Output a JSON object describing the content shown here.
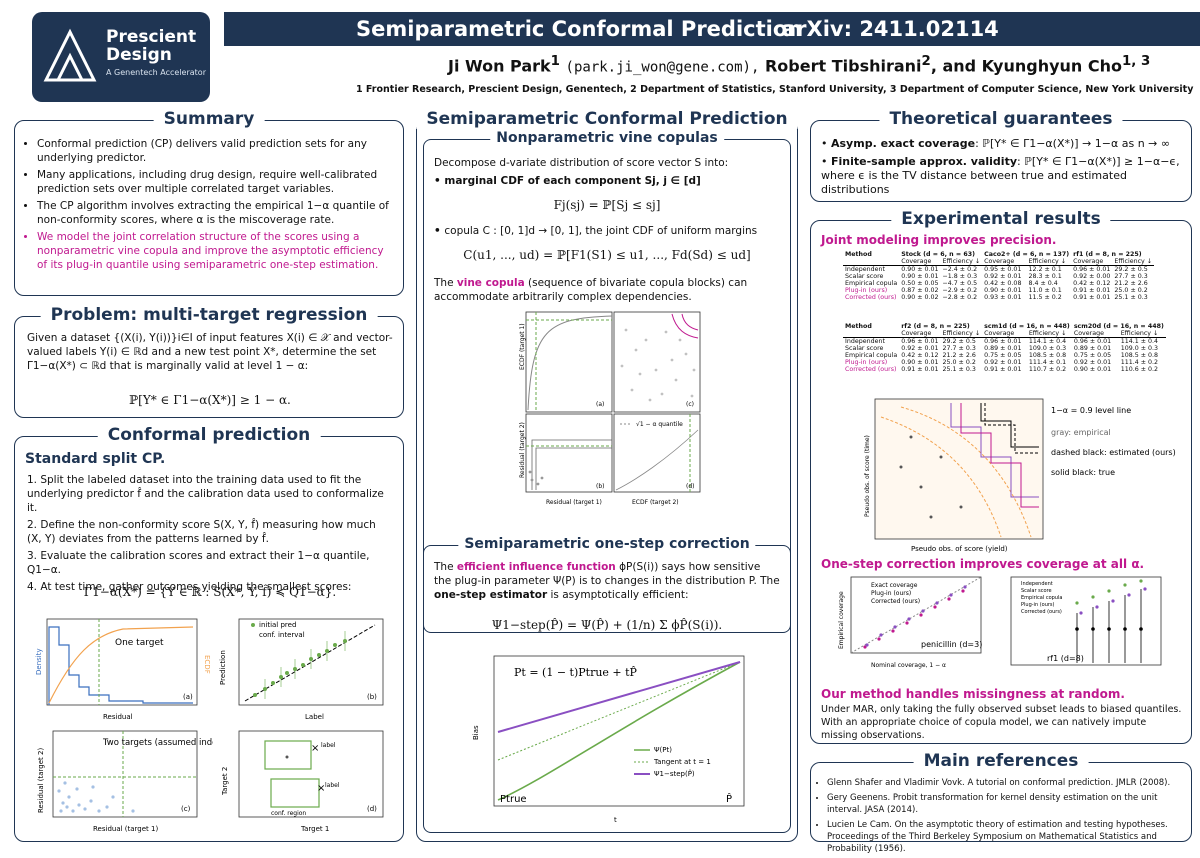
{
  "header": {
    "logo_line1": "Prescient",
    "logo_line2": "Design",
    "logo_sub": "A Genentech Accelerator",
    "title": "Semiparametric Conformal Prediction",
    "arxiv": "arXiv: 2411.02114",
    "authors_a": "Ji Won Park",
    "authors_email": "(park.ji_won@gene.com),",
    "authors_b": "Robert Tibshirani",
    "authors_c": ", and Kyunghyun Cho",
    "affiliations": "1 Frontier Research, Prescient Design, Genentech,    2 Department of Statistics, Stanford University,    3 Department of Computer Science, New York University"
  },
  "summary": {
    "title": "Summary",
    "b1": "Conformal prediction (CP) delivers valid prediction sets for any underlying predictor.",
    "b2": "Many applications, including drug design, require well-calibrated prediction sets over multiple correlated target variables.",
    "b3": "The CP algorithm involves extracting the empirical 1−α quantile of non-conformity scores, where α is the miscoverage rate.",
    "b4": "We model the joint correlation structure of the scores using a nonparametric vine copula and improve the asymptotic efficiency of its plug-in quantile using semiparametric one-step estimation."
  },
  "problem": {
    "title": "Problem: multi-target regression",
    "text": "Given a dataset {(X(i), Y(i))}i∈I of input features X(i) ∈ 𝒳 and vector-valued labels Y(i) ∈ ℝd and a new test point X*, determine the set Γ1−α(X*) ⊂ ℝd that is marginally valid at level 1 − α:",
    "eq": "ℙ[Y* ∈ Γ1−α(X*)] ≥ 1 − α."
  },
  "conformal": {
    "title": "Conformal prediction",
    "sub": "Standard split CP.",
    "s1": "1. Split the labeled dataset into the training data used to fit the underlying predictor f̂ and the calibration data used to conformalize it.",
    "s2": "2. Define the non-conformity score S(X, Y, f̂) measuring how much (X, Y) deviates from the patterns learned by f̂.",
    "s3": "3. Evaluate the calibration scores and extract their 1−α quantile, Q1−α.",
    "s4": "4. At test time, gather outcomes yielding the smallest scores:",
    "eq": "Γ1−α(X*) = {Y ∈ ℝ : S(X*, Y, f̂) ≼ Q1−α}.",
    "fig_a_label": "One target",
    "fig_a_x": "Residual",
    "fig_a_y": "Density",
    "fig_a_y2": "ECDF",
    "fig_b_x": "Label",
    "fig_b_y": "Prediction",
    "fig_b_leg1": "initial pred",
    "fig_b_leg2": "conf. interval",
    "fig_c_label": "Two targets (assumed indep.)",
    "fig_c_x": "Residual (target 1)",
    "fig_c_y": "Residual (target 2)",
    "fig_d_x": "Target 1",
    "fig_d_y": "Target 2",
    "fig_d_leg1": "label",
    "fig_d_leg2": "label",
    "fig_d_leg3": "conf. region"
  },
  "semipar": {
    "title": "Semiparametric Conformal Prediction",
    "vine_title": "Nonparametric vine copulas",
    "vine_t1": "Decompose d-variate distribution of score vector S into:",
    "vine_b1": "marginal CDF of each component Sj, j ∈ [d]",
    "vine_eq1": "Fj(sj) = ℙ[Sj ≤ sj]",
    "vine_b2": "copula C : [0, 1]d → [0, 1], the joint CDF of uniform margins",
    "vine_eq2": "C(u1, ..., ud) = ℙ[F1(S1) ≤ u1, ..., Fd(Sd) ≤ ud]",
    "vine_t2a": "The ",
    "vine_t2b": "vine copula",
    "vine_t2c": " (sequence of bivariate copula blocks) can accommodate arbitrarily complex dependencies.",
    "vfig_x1": "Residual (target 1)",
    "vfig_x2": "ECDF (target 2)",
    "vfig_y1": "ECDF (target 1)",
    "vfig_y2": "Residual (target 2)",
    "vfig_leg": "√1 − α quantile",
    "onestep_title": "Semiparametric one-step correction",
    "os_t1a": "The ",
    "os_t1b": "efficient influence function",
    "os_t1c": " ϕP(S(i)) says how sensitive the plug-in parameter Ψ(P) is to changes in the distribution P. The ",
    "os_t1d": "one-step estimator",
    "os_t1e": " is asymptotically efficient:",
    "os_eq": "Ψ1−step(P̂) = Ψ(P̂) + (1/n) Σ ϕP̂(S(i)).",
    "os_fig_eq": "Pt = (1 − t)Ptrue + tP̂",
    "os_leg1": "Ψ(Pt)",
    "os_leg2": "Tangent at t = 1",
    "os_leg3": "Ψ1−step(P̂)",
    "os_ylab": "Bias",
    "os_xlab": "t",
    "os_ptrue": "Ptrue",
    "os_phat": "P̂"
  },
  "theory": {
    "title": "Theoretical guarantees",
    "b1a": "Asymp. exact coverage",
    "b1b": ": ℙ[Y* ∈ Γ1−α(X*)] → 1−α as n → ∞",
    "b2a": "Finite-sample approx. validity",
    "b2b": ": ℙ[Y* ∈ Γ1−α(X*)] ≥ 1−α−ϵ, where ϵ is the TV distance between true and estimated distributions"
  },
  "experiments": {
    "title": "Experimental results",
    "h1": "Joint modeling improves precision.",
    "table1": {
      "headers": [
        "Method",
        "Stock (d = 6, n = 63)",
        "Caco2+ (d = 6, n = 137)",
        "rf1 (d = 8, n = 225)"
      ],
      "sub": [
        "Coverage",
        "Efficiency ↓"
      ],
      "rows": [
        [
          "Independent",
          "0.90 ± 0.01",
          "−2.4 ± 0.2",
          "0.95 ± 0.01",
          "12.2 ± 0.1",
          "0.96 ± 0.01",
          "29.2 ± 0.5"
        ],
        [
          "Scalar score",
          "0.90 ± 0.01",
          "−1.8 ± 0.3",
          "0.92 ± 0.01",
          "28.3 ± 0.1",
          "0.92 ± 0.00",
          "27.7 ± 0.3"
        ],
        [
          "Empirical copula",
          "0.50 ± 0.05",
          "−4.7 ± 0.5",
          "0.42 ± 0.08",
          "8.4 ± 0.4",
          "0.42 ± 0.12",
          "21.2 ± 2.6"
        ],
        [
          "Plug-in (ours)",
          "0.87 ± 0.02",
          "−2.9 ± 0.2",
          "0.90 ± 0.01",
          "11.0 ± 0.1",
          "0.91 ± 0.01",
          "25.0 ± 0.2"
        ],
        [
          "Corrected (ours)",
          "0.90 ± 0.02",
          "−2.8 ± 0.2",
          "0.93 ± 0.01",
          "11.5 ± 0.2",
          "0.91 ± 0.01",
          "25.1 ± 0.3"
        ]
      ]
    },
    "table2": {
      "headers": [
        "Method",
        "rf2 (d = 8, n = 225)",
        "scm1d (d = 16, n = 448)",
        "scm20d (d = 16, n = 448)"
      ],
      "sub": [
        "Coverage",
        "Efficiency ↓"
      ],
      "rows": [
        [
          "Independent",
          "0.96 ± 0.01",
          "29.2 ± 0.5",
          "0.96 ± 0.01",
          "114.1 ± 0.4",
          "0.96 ± 0.01",
          "114.1 ± 0.4"
        ],
        [
          "Scalar score",
          "0.92 ± 0.01",
          "27.7 ± 0.3",
          "0.89 ± 0.01",
          "109.0 ± 0.3",
          "0.89 ± 0.01",
          "109.0 ± 0.3"
        ],
        [
          "Empirical copula",
          "0.42 ± 0.12",
          "21.2 ± 2.6",
          "0.75 ± 0.05",
          "108.5 ± 0.8",
          "0.75 ± 0.05",
          "108.5 ± 0.8"
        ],
        [
          "Plug-in (ours)",
          "0.90 ± 0.01",
          "25.0 ± 0.2",
          "0.92 ± 0.01",
          "111.4 ± 0.1",
          "0.92 ± 0.01",
          "111.4 ± 0.2"
        ],
        [
          "Corrected (ours)",
          "0.91 ± 0.01",
          "25.1 ± 0.3",
          "0.91 ± 0.01",
          "110.7 ± 0.2",
          "0.90 ± 0.01",
          "110.6 ± 0.2"
        ]
      ]
    },
    "lvl_leg1": "1−α = 0.9 level line",
    "lvl_leg2": "gray: empirical",
    "lvl_leg3": "dashed black: estimated (ours)",
    "lvl_leg4": "solid black: true",
    "lvl_x": "Pseudo obs. of score (yield)",
    "lvl_y": "Pseudo obs. of score (time)",
    "h2": "One-step correction improves coverage at all α.",
    "cov_leg1": "Exact coverage",
    "cov_leg2": "Plug-in (ours)",
    "cov_leg3": "Corrected (ours)",
    "cov_label": "penicillin (d=3)",
    "cov_x": "Nominal coverage, 1 − α",
    "cov_y": "Empirical coverage",
    "cov2_leg": [
      "Independent",
      "Scalar score",
      "Empirical copula",
      "Plug-in (ours)",
      "Corrected (ours)"
    ],
    "cov2_label": "rf1 (d=8)",
    "h3": "Our method handles missingness at random.",
    "mar_text": "Under MAR, only taking the fully observed subset leads to biased quantiles. With an appropriate choice of copula model, we can natively impute missing observations."
  },
  "refs": {
    "title": "Main references",
    "r1": "Glenn Shafer and Vladimir Vovk. A tutorial on conformal prediction. JMLR (2008).",
    "r2": "Gery Geenens. Probit transformation for kernel density estimation on the unit interval. JASA (2014).",
    "r3": "Lucien Le Cam. On the asymptotic theory of estimation and testing hypotheses. Proceedings of the Third Berkeley Symposium on Mathematical Statistics and Probability (1956)."
  },
  "colors": {
    "navy": "#1f3553",
    "magenta": "#c0198f",
    "green": "#6aaa4b",
    "purple": "#8a4fc2"
  }
}
